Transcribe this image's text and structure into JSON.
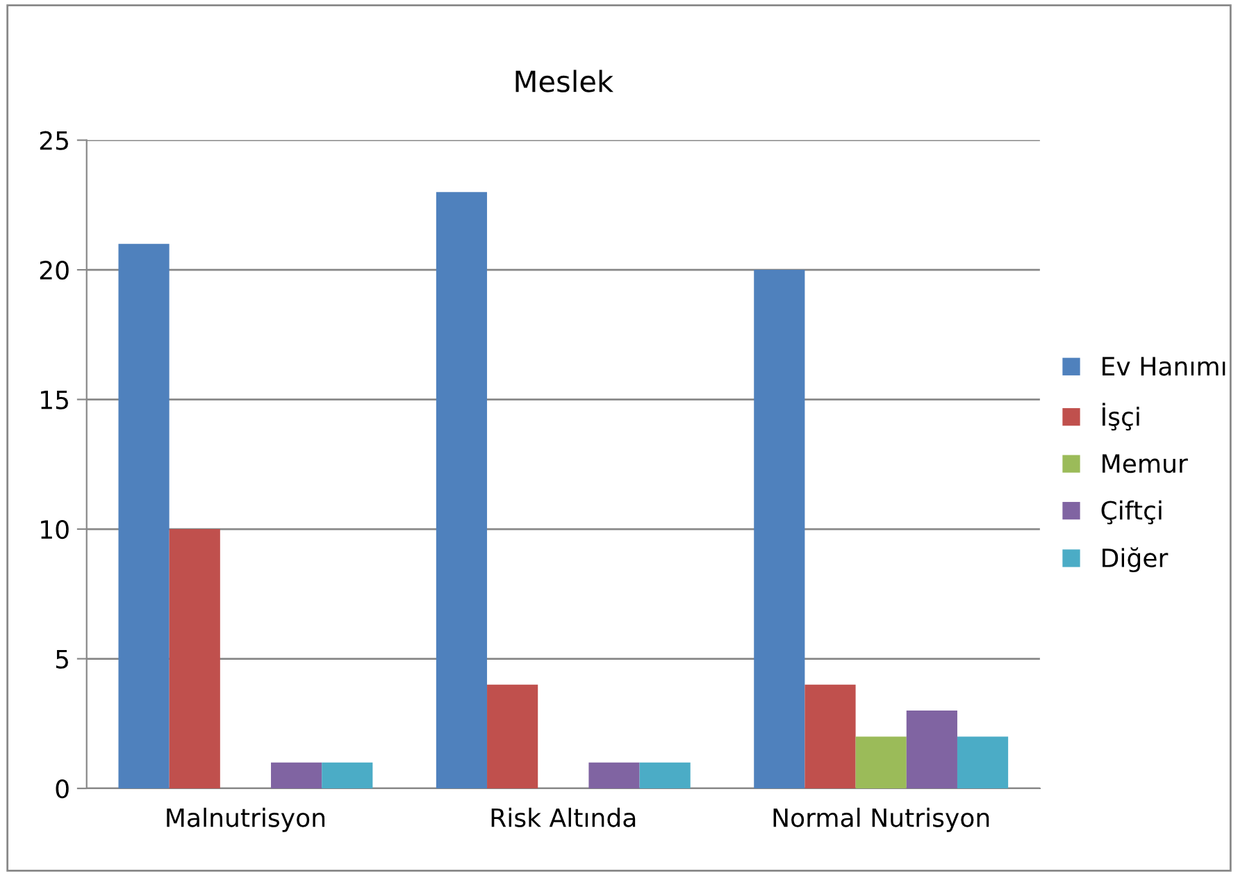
{
  "chart_data": {
    "type": "bar",
    "title": "Meslek",
    "categories": [
      "Malnutrisyon",
      "Risk Altında",
      "Normal Nutrisyon"
    ],
    "series": [
      {
        "name": "Ev Hanımı",
        "color": "#4f81bd",
        "values": [
          21,
          23,
          20
        ]
      },
      {
        "name": "İşçi",
        "color": "#c0504d",
        "values": [
          10,
          4,
          4
        ]
      },
      {
        "name": "Memur",
        "color": "#9bbb59",
        "values": [
          0,
          0,
          2
        ]
      },
      {
        "name": "Çiftçi",
        "color": "#8064a2",
        "values": [
          1,
          1,
          3
        ]
      },
      {
        "name": "Diğer",
        "color": "#4bacc6",
        "values": [
          1,
          1,
          2
        ]
      }
    ],
    "ylim": [
      0,
      25
    ],
    "yticks": [
      0,
      5,
      10,
      15,
      20,
      25
    ],
    "grid": "y",
    "legend": "right"
  }
}
